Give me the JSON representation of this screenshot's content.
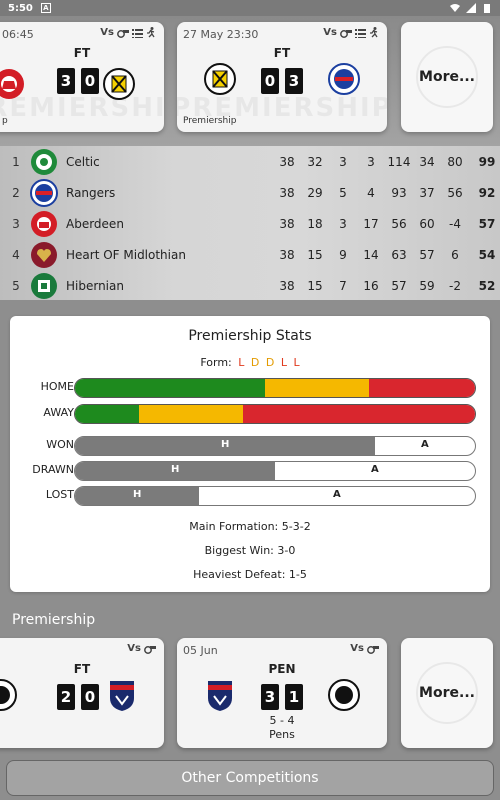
{
  "status_bar": {
    "time": "5:50",
    "badge": "A"
  },
  "fixtures_top": [
    {
      "date": "06:45",
      "status": "FT",
      "home_score": "3",
      "away_score": "0",
      "competition": "p",
      "vs": "Vs",
      "watermark": "PREMIERSHIP"
    },
    {
      "date": "27 May 23:30",
      "status": "FT",
      "home_score": "0",
      "away_score": "3",
      "competition": "Premiership",
      "vs": "Vs",
      "watermark": "PREMIERSHIP"
    }
  ],
  "more_label": "More...",
  "league_table": {
    "rows": [
      {
        "pos": "1",
        "team": "Celtic",
        "p": "38",
        "w": "32",
        "d": "3",
        "l": "3",
        "gf": "114",
        "ga": "34",
        "gd": "80",
        "pts": "99",
        "colors": [
          "#1f8a3a",
          "#ffffff"
        ]
      },
      {
        "pos": "2",
        "team": "Rangers",
        "p": "38",
        "w": "29",
        "d": "5",
        "l": "4",
        "gf": "93",
        "ga": "37",
        "gd": "56",
        "pts": "92",
        "colors": [
          "#1b3fa0",
          "#d92027"
        ]
      },
      {
        "pos": "3",
        "team": "Aberdeen",
        "p": "38",
        "w": "18",
        "d": "3",
        "l": "17",
        "gf": "56",
        "ga": "60",
        "gd": "-4",
        "pts": "57",
        "colors": [
          "#d31d26",
          "#ffffff"
        ]
      },
      {
        "pos": "4",
        "team": "Heart OF Midlothian",
        "p": "38",
        "w": "15",
        "d": "9",
        "l": "14",
        "gf": "63",
        "ga": "57",
        "gd": "6",
        "pts": "54",
        "colors": [
          "#8a1a2b",
          "#d8b24a"
        ]
      },
      {
        "pos": "5",
        "team": "Hibernian",
        "p": "38",
        "w": "15",
        "d": "7",
        "l": "16",
        "gf": "57",
        "ga": "59",
        "gd": "-2",
        "pts": "52",
        "colors": [
          "#1a7a3c",
          "#ffffff"
        ]
      }
    ]
  },
  "stats": {
    "title": "Premiership Stats",
    "form_label": "Form:",
    "form": [
      "L",
      "D",
      "D",
      "L",
      "L"
    ],
    "home_label": "HOME",
    "away_label": "AWAY",
    "home_split": [
      0.475,
      0.26,
      0.265
    ],
    "away_split": [
      0.16,
      0.26,
      0.58
    ],
    "won_label": "WON",
    "drawn_label": "DRAWN",
    "lost_label": "LOST",
    "won_home_fraction": 0.75,
    "drawn_home_fraction": 0.5,
    "lost_home_fraction": 0.31,
    "h_label": "H",
    "a_label": "A",
    "main_formation": "Main Formation: 5-3-2",
    "biggest_win": "Biggest Win: 3-0",
    "heaviest_defeat": "Heaviest Defeat: 1-5",
    "colors": {
      "win": "#1e8a1e",
      "draw": "#f5b800",
      "loss": "#d9262e"
    }
  },
  "section_title": "Premiership",
  "fixtures_bottom": [
    {
      "date": "",
      "status": "FT",
      "home_score": "2",
      "away_score": "0",
      "vs": "Vs",
      "extra1": "",
      "extra2": ""
    },
    {
      "date": "05 Jun",
      "status": "PEN",
      "home_score": "3",
      "away_score": "1",
      "vs": "Vs",
      "extra1": "5 - 4",
      "extra2": "Pens"
    }
  ],
  "other_competitions": "Other Competitions"
}
